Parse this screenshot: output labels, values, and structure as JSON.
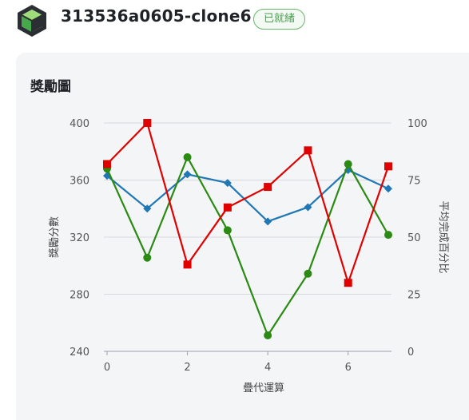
{
  "header": {
    "project_name": "313536a0605-clone6",
    "status_badge": "已就緒",
    "logo_icon": "cube-icon"
  },
  "card": {
    "title": "獎勵圖"
  },
  "chart_data": {
    "type": "line",
    "title": "",
    "xlabel": "疊代運算",
    "ylabel_left": "獎勵分數",
    "ylabel_right": "平均完成百分比",
    "x": [
      0,
      1,
      2,
      3,
      4,
      5,
      6,
      7
    ],
    "x_ticks": [
      "0",
      "2",
      "4",
      "6"
    ],
    "x_tick_values": [
      0,
      2,
      4,
      6
    ],
    "xlim": [
      0,
      7
    ],
    "ylim_left": [
      240,
      400
    ],
    "y_ticks_left": [
      "240",
      "280",
      "320",
      "360",
      "400"
    ],
    "ylim_right": [
      0,
      100
    ],
    "y_ticks_right": [
      "0",
      "25",
      "50",
      "75",
      "100"
    ],
    "grid": true,
    "series": [
      {
        "axis": "left",
        "color": "#1f77b4",
        "marker": "diamond",
        "values": [
          363,
          340,
          364,
          358,
          331,
          341,
          367,
          354
        ]
      },
      {
        "axis": "right",
        "color": "#2a8a12",
        "marker": "circle",
        "values": [
          80,
          41,
          85,
          53,
          7,
          34,
          82,
          51
        ]
      },
      {
        "axis": "right",
        "color": "#e00000",
        "marker": "square",
        "values": [
          82,
          100,
          38,
          63,
          72,
          88,
          30,
          81
        ]
      }
    ]
  }
}
